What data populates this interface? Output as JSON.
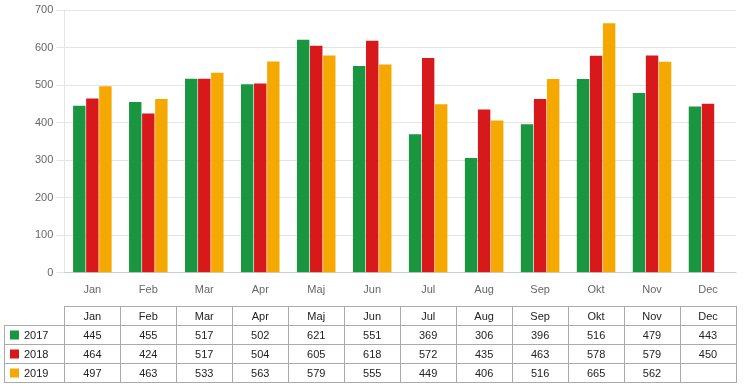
{
  "chart_data": {
    "type": "bar",
    "categories": [
      "Jan",
      "Feb",
      "Mar",
      "Apr",
      "Maj",
      "Jun",
      "Jul",
      "Aug",
      "Sep",
      "Okt",
      "Nov",
      "Dec"
    ],
    "series": [
      {
        "name": "2017",
        "color": "#1a9641",
        "values": [
          445,
          455,
          517,
          502,
          621,
          551,
          369,
          306,
          396,
          516,
          479,
          443
        ]
      },
      {
        "name": "2018",
        "color": "#d7191c",
        "values": [
          464,
          424,
          517,
          504,
          605,
          618,
          572,
          435,
          463,
          578,
          579,
          450
        ]
      },
      {
        "name": "2019",
        "color": "#f5a800",
        "values": [
          497,
          463,
          533,
          563,
          579,
          555,
          449,
          406,
          516,
          665,
          562,
          null
        ]
      }
    ],
    "ylim": [
      0,
      700
    ],
    "yticks": [
      0,
      100,
      200,
      300,
      400,
      500,
      600,
      700
    ],
    "grid": true,
    "legend": "bottom",
    "data_labels": true
  }
}
